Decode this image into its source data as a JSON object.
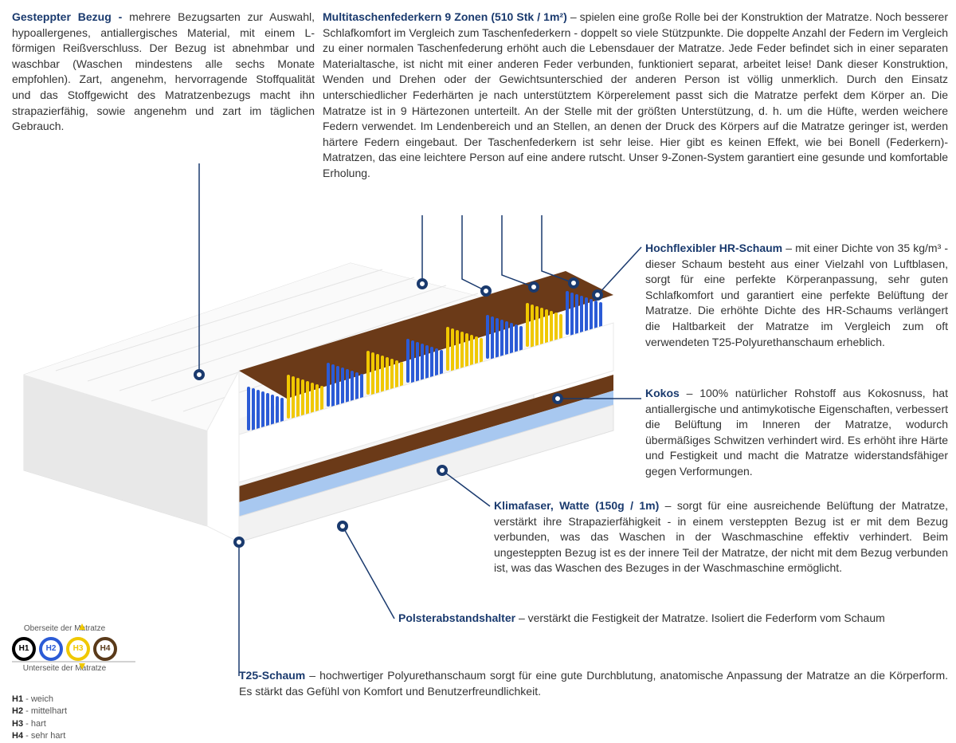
{
  "sections": {
    "bezug": {
      "title": "Gesteppter Bezug - ",
      "text": "mehrere Bezugsarten zur Auswahl, hypoallergenes, antiallergisches Material, mit einem L-förmigen Reißverschluss. Der Bezug ist abnehmbar und waschbar (Waschen mindestens alle sechs Monate empfohlen). Zart, angenehm, hervorragende Stoffqualität und das Stoffgewicht des Matratzenbezugs macht ihn strapazierfähig, sowie angenehm und zart im täglichen Gebrauch."
    },
    "federkern": {
      "title": "Multitaschenfederkern 9 Zonen (510 Stk / 1m²) ",
      "text": "– spielen eine große Rolle bei der Konstruktion der Matratze. Noch besserer Schlafkomfort im Vergleich zum Taschenfederkern - doppelt so viele Stützpunkte. Die doppelte Anzahl der Federn im Vergleich zu einer normalen Taschenfederung erhöht auch die Lebensdauer der Matratze. Jede Feder befindet sich in einer separaten Materialtasche, ist nicht mit einer anderen Feder verbunden, funktioniert separat, arbeitet leise! Dank dieser Konstruktion, Wenden und Drehen oder der Gewichtsunterschied der anderen Person ist völlig unmerklich. Durch den Einsatz unterschiedlicher Federhärten je nach unterstütztem Körperelement passt sich die Matratze perfekt dem Körper an. Die Matratze ist in 9 Härtezonen unterteilt. An der Stelle mit der größten Unterstützung, d. h. um die Hüfte, werden weichere Federn verwendet. Im Lendenbereich und an Stellen, an denen der Druck des Körpers auf die Matratze geringer ist, werden härtere Federn eingebaut. Der Taschenfederkern ist sehr leise. Hier gibt es keinen Effekt, wie bei Bonell (Federkern)- Matratzen, das eine leichtere Person auf eine andere rutscht. Unser 9-Zonen-System garantiert eine gesunde und komfortable Erholung."
    },
    "hrschaum": {
      "title": "Hochflexibler HR-Schaum ",
      "text": "– mit einer Dichte von 35 kg/m³ - dieser Schaum besteht aus einer Vielzahl von Luftblasen, sorgt für eine perfekte Körperanpassung, sehr guten Schlafkomfort und garantiert eine perfekte Belüftung der Matratze. Die erhöhte Dichte des HR-Schaums verlängert die Haltbarkeit der Matratze im Vergleich zum oft verwendeten T25-Polyurethanschaum erheblich."
    },
    "kokos": {
      "title": "Kokos ",
      "text": "– 100% natürlicher Rohstoff aus Kokosnuss, hat antiallergische und antimykotische Eigenschaften, verbessert die Belüftung im Inneren der Matratze, wodurch übermäßiges Schwitzen verhindert wird. Es erhöht ihre Härte und Festigkeit und macht die Matratze widerstandsfähiger gegen Verformungen."
    },
    "klimafaser": {
      "title": "Klimafaser, Watte (150g / 1m) ",
      "text": "– sorgt für eine ausreichende Belüftung der Matratze, verstärkt ihre Strapazierfähigkeit - in einem versteppten Bezug ist er mit dem Bezug verbunden, was das Waschen in der Waschmaschine effektiv verhindert. Beim ungesteppten Bezug ist es der innere Teil der Matratze, der nicht mit dem Bezug verbunden ist, was das Waschen des Bezuges in der Waschmaschine ermöglicht."
    },
    "polster": {
      "title": "Polsterabstandshalter ",
      "text": "– verstärkt die Festigkeit der Matratze. Isoliert die Federform vom Schaum"
    },
    "t25": {
      "title": "T25-Schaum ",
      "text": "– hochwertiger Polyurethanschaum sorgt für eine gute Durchblutung, anatomische Anpassung der Matratze an die Körperform. Es stärkt das Gefühl von Komfort und Benutzerfreundlichkeit."
    }
  },
  "legend": {
    "top_label": "Oberseite der Matratze",
    "bottom_label": "Unterseite der Matratze",
    "items": [
      {
        "code": "H1",
        "color": "#000000",
        "text_color": "#000000"
      },
      {
        "code": "H2",
        "color": "#2b5bd6",
        "text_color": "#2b5bd6"
      },
      {
        "code": "H3",
        "color": "#f0c800",
        "text_color": "#f0c800"
      },
      {
        "code": "H4",
        "color": "#5a3a1a",
        "text_color": "#5a3a1a"
      }
    ],
    "hardness": [
      {
        "code": "H1",
        "label": "- weich"
      },
      {
        "code": "H2",
        "label": "- mittelhart"
      },
      {
        "code": "H3",
        "label": "- hart"
      },
      {
        "code": "H4",
        "label": "- sehr hart"
      }
    ]
  },
  "image": {
    "springs_pattern": [
      "#2b5bd6",
      "#f0c800",
      "#2b5bd6",
      "#f0c800",
      "#2b5bd6",
      "#f0c800",
      "#2b5bd6",
      "#f0c800",
      "#2b5bd6"
    ],
    "coco_color": "#6b3a18",
    "cover_color": "#f2f2f2",
    "cover_shadow": "#d8d8d8",
    "foam_white": "#ffffff",
    "foam_blue": "#a8c8f0"
  }
}
